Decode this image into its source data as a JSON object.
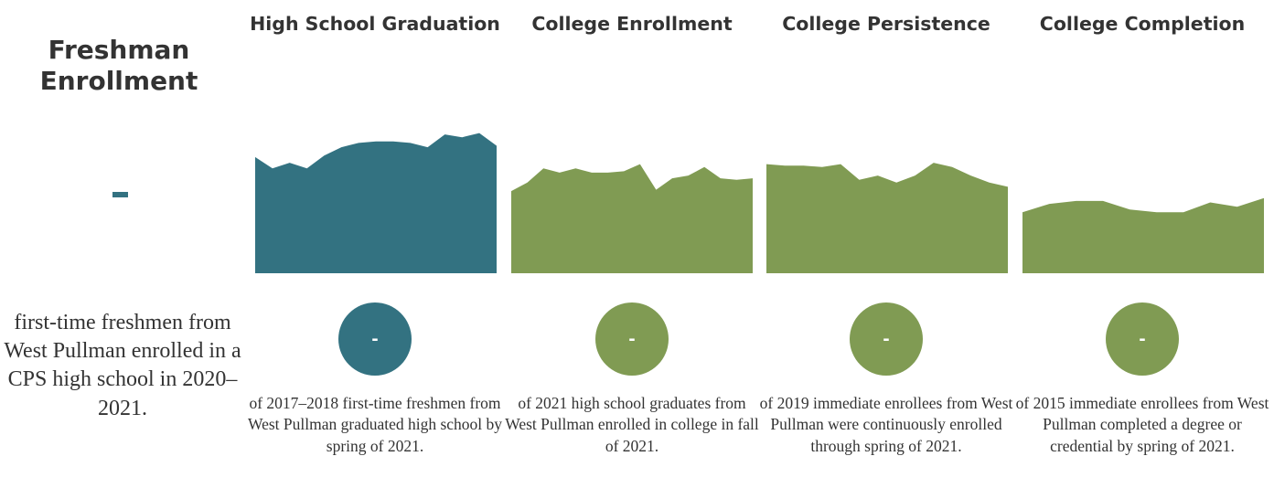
{
  "freshman": {
    "title": "Freshman Enrollment",
    "value": "-",
    "description": "first-time freshmen from West Pullman enrolled in a CPS high school in 2020–2021."
  },
  "colors": {
    "teal": "#337281",
    "green": "#809b53",
    "text": "#333333"
  },
  "metrics": [
    {
      "title": "High School Graduation",
      "value": "-",
      "description": "of 2017–2018 first-time freshmen from West Pullman graduated high school by spring of 2021.",
      "color": "#337281"
    },
    {
      "title": "College Enrollment",
      "value": "-",
      "description": "of 2021 high school graduates from West Pullman enrolled in college in fall of 2021.",
      "color": "#809b53"
    },
    {
      "title": "College Persistence",
      "value": "-",
      "description": "of 2019 immediate enrollees from West Pullman were continuously enrolled through spring of 2021.",
      "color": "#809b53"
    },
    {
      "title": "College Completion",
      "value": "-",
      "description": "of 2015 immediate enrollees from West Pullman completed a degree or credential by spring of 2021.",
      "color": "#809b53"
    }
  ],
  "chart_data": {
    "type": "area",
    "ylim": [
      0,
      1
    ],
    "grid": false,
    "series": [
      {
        "values": [
          0.82,
          0.74,
          0.78,
          0.74,
          0.83,
          0.89,
          0.92,
          0.93,
          0.93,
          0.92,
          0.89,
          0.98,
          0.96,
          0.99,
          0.9
        ]
      },
      {
        "values": [
          0.58,
          0.64,
          0.74,
          0.71,
          0.74,
          0.71,
          0.71,
          0.72,
          0.77,
          0.59,
          0.67,
          0.69,
          0.75,
          0.67,
          0.66,
          0.67
        ]
      },
      {
        "values": [
          0.77,
          0.76,
          0.76,
          0.75,
          0.77,
          0.66,
          0.69,
          0.64,
          0.69,
          0.78,
          0.75,
          0.69,
          0.64,
          0.61
        ]
      },
      {
        "values": [
          0.43,
          0.49,
          0.51,
          0.51,
          0.45,
          0.43,
          0.43,
          0.5,
          0.47,
          0.53
        ]
      }
    ]
  }
}
